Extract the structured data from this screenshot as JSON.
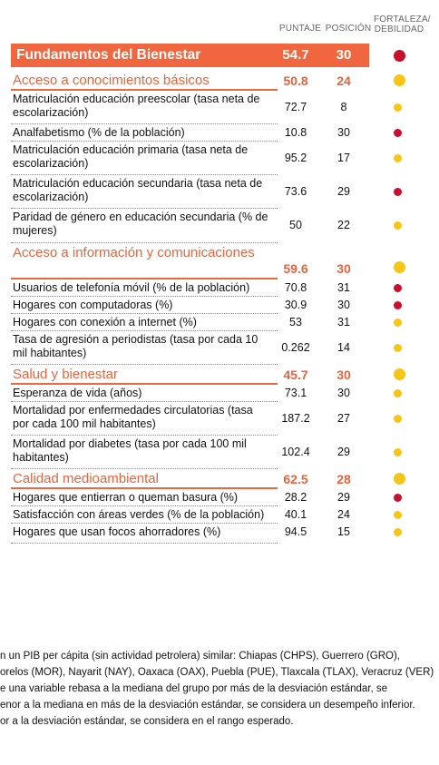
{
  "header": {
    "score": "PUNTAJE",
    "position": "POSICIÓN",
    "strength": "FORTALEZA/\nDEBILIDAD"
  },
  "colors": {
    "red": "#c8102e",
    "yellow": "#f5c518",
    "accent": "#f0663e"
  },
  "rows": [
    {
      "type": "main",
      "label": "Fundamentos del Bienestar",
      "score": "54.7",
      "position": "30",
      "status": "red"
    },
    {
      "type": "cat",
      "label": "Acceso a conocimientos básicos",
      "score": "50.8",
      "position": "24",
      "status": "yellow"
    },
    {
      "type": "ind",
      "label": "Matriculación educación preescolar (tasa neta de escolarización)",
      "score": "72.7",
      "position": "8",
      "status": "yellow"
    },
    {
      "type": "ind",
      "label": "Analfabetismo (% de la población)",
      "score": "10.8",
      "position": "30",
      "status": "red"
    },
    {
      "type": "ind",
      "label": "Matriculación educación primaria (tasa neta de escolarización)",
      "score": "95.2",
      "position": "17",
      "status": "yellow"
    },
    {
      "type": "ind",
      "label": "Matriculación educación secundaria (tasa neta de escolarización)",
      "score": "73.6",
      "position": "29",
      "status": "red"
    },
    {
      "type": "ind",
      "label": "Paridad de género en educación secundaria (% de mujeres)",
      "score": "50",
      "position": "22",
      "status": "yellow"
    },
    {
      "type": "cat",
      "label": "Acceso a información y comunicaciones",
      "score": "59.6",
      "position": "30",
      "status": "yellow"
    },
    {
      "type": "ind",
      "label": "Usuarios de telefonía móvil (% de la población)",
      "score": "70.8",
      "position": "31",
      "status": "red"
    },
    {
      "type": "ind",
      "label": "Hogares con computadoras (%)",
      "score": "30.9",
      "position": "30",
      "status": "red"
    },
    {
      "type": "ind",
      "label": "Hogares con conexión a internet (%)",
      "score": "53",
      "position": "31",
      "status": "yellow"
    },
    {
      "type": "ind",
      "label": "Tasa de agresión a periodistas (tasa por cada 10 mil habitantes)",
      "score": "0.262",
      "position": "14",
      "status": "yellow"
    },
    {
      "type": "cat",
      "label": "Salud y bienestar",
      "score": "45.7",
      "position": "30",
      "status": "yellow"
    },
    {
      "type": "ind",
      "label": "Esperanza de vida (años)",
      "score": "73.1",
      "position": "30",
      "status": "yellow"
    },
    {
      "type": "ind",
      "label": "Mortalidad por enfermedades circulatorias (tasa por cada 100 mil habitantes)",
      "score": "187.2",
      "position": "27",
      "status": "yellow"
    },
    {
      "type": "ind",
      "label": "Mortalidad por diabetes (tasa por cada 100 mil habitantes)",
      "score": "102.4",
      "position": "29",
      "status": "yellow"
    },
    {
      "type": "cat",
      "label": "Calidad medioambiental",
      "score": "62.5",
      "position": "28",
      "status": "yellow"
    },
    {
      "type": "ind",
      "label": "Hogares que entierran o queman basura (%)",
      "score": "28.2",
      "position": "29",
      "status": "red"
    },
    {
      "type": "ind",
      "label": "Satisfacción con áreas verdes (% de la población)",
      "score": "40.1",
      "position": "24",
      "status": "yellow"
    },
    {
      "type": "ind",
      "label": "Hogares que usan focos ahorradores (%)",
      "score": "94.5",
      "position": "15",
      "status": "yellow"
    }
  ],
  "footnotes": [
    "n un PIB per cápita (sin actividad petrolera) similar: Chiapas (CHPS), Guerrero (GRO),",
    "orelos (MOR), Nayarit (NAY), Oaxaca (OAX), Puebla (PUE), Tlaxcala (TLAX), Veracruz (VER)",
    "e una variable rebasa a la mediana del grupo por más de la desviación estándar, se",
    "enor a la mediana en más de la desviación estándar, se considera un desempeño inferior.",
    "or a la desviación estándar, se considera en el rango esperado."
  ]
}
